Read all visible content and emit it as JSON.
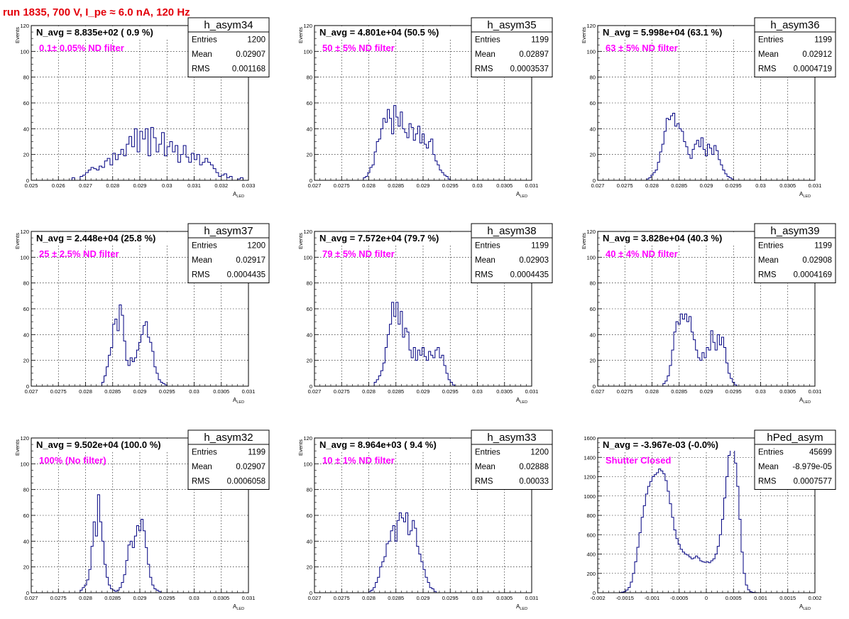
{
  "header": {
    "title": "run 1835,   700 V, I_pe ≈ 6.0 nA, 120 Hz"
  },
  "colors": {
    "title": "#e3000b",
    "histogram": "#000080",
    "annotation": "#ff00ff",
    "grid": "#000000"
  },
  "chart_data": [
    {
      "type": "histogram",
      "name": "h_asym34",
      "nav_label": "N_avg = 8.835e+02 ( 0.9 %)",
      "filter_label": "0.1± 0.05% ND filter",
      "stats": {
        "entries": "1200",
        "mean": "0.02907",
        "rms": "0.001168"
      },
      "stats_labels": {
        "entries": "Entries",
        "mean": "Mean",
        "rms": "RMS"
      },
      "ylabel": "Events",
      "xlabel": "A",
      "xlabel_sub": "LED",
      "xlim": [
        0.025,
        0.033
      ],
      "ylim": [
        0,
        120
      ],
      "xticks": [
        "0.025",
        "0.026",
        "0.027",
        "0.028",
        "0.029",
        "0.03",
        "0.031",
        "0.032",
        "0.033"
      ],
      "yticks": [
        "0",
        "20",
        "40",
        "60",
        "80",
        "100",
        "120"
      ],
      "bin_width": 0.0001,
      "bin_start": 0.0265,
      "values": [
        2,
        0,
        0,
        3,
        4,
        6,
        8,
        10,
        9,
        8,
        11,
        10,
        15,
        17,
        12,
        21,
        16,
        20,
        24,
        19,
        28,
        34,
        26,
        40,
        22,
        38,
        32,
        40,
        19,
        41,
        33,
        22,
        28,
        37,
        19,
        26,
        30,
        22,
        27,
        14,
        20,
        27,
        18,
        14,
        21,
        16,
        20,
        12,
        14,
        17,
        14,
        12,
        9,
        6,
        3,
        4,
        5,
        2,
        3,
        0,
        0,
        1,
        2
      ]
    },
    {
      "type": "histogram",
      "name": "h_asym35",
      "nav_label": "N_avg = 4.801e+04 (50.5 %)",
      "filter_label": "50 ± 5% ND filter",
      "stats": {
        "entries": "1199",
        "mean": "0.02897",
        "rms": "0.0003537"
      },
      "stats_labels": {
        "entries": "Entries",
        "mean": "Mean",
        "rms": "RMS"
      },
      "ylabel": "Events",
      "xlabel": "A",
      "xlabel_sub": "LED",
      "xlim": [
        0.027,
        0.031
      ],
      "ylim": [
        0,
        120
      ],
      "xticks": [
        "0.027",
        "0.0275",
        "0.028",
        "0.0285",
        "0.029",
        "0.0295",
        "0.03",
        "0.0305",
        "0.031"
      ],
      "yticks": [
        "0",
        "20",
        "40",
        "60",
        "80",
        "100",
        "120"
      ],
      "bin_width": 4e-05,
      "bin_start": 0.0279,
      "values": [
        2,
        3,
        6,
        10,
        12,
        22,
        30,
        32,
        40,
        48,
        45,
        55,
        48,
        36,
        58,
        49,
        42,
        53,
        40,
        37,
        33,
        44,
        41,
        31,
        36,
        42,
        29,
        36,
        28,
        25,
        30,
        32,
        20,
        15,
        12,
        8,
        6,
        4,
        3,
        1,
        0
      ]
    },
    {
      "type": "histogram",
      "name": "h_asym36",
      "nav_label": "N_avg = 5.998e+04 (63.1 %)",
      "filter_label": "63 ± 5% ND filter",
      "stats": {
        "entries": "1199",
        "mean": "0.02912",
        "rms": "0.0004719"
      },
      "stats_labels": {
        "entries": "Entries",
        "mean": "Mean",
        "rms": "RMS"
      },
      "ylabel": "Events",
      "xlabel": "A",
      "xlabel_sub": "LED",
      "xlim": [
        0.027,
        0.031
      ],
      "ylim": [
        0,
        120
      ],
      "xticks": [
        "0.027",
        "0.0275",
        "0.028",
        "0.0285",
        "0.029",
        "0.0295",
        "0.03",
        "0.0305",
        "0.031"
      ],
      "yticks": [
        "0",
        "20",
        "40",
        "60",
        "80",
        "100",
        "120"
      ],
      "bin_width": 4e-05,
      "bin_start": 0.0279,
      "values": [
        1,
        2,
        4,
        6,
        8,
        14,
        22,
        28,
        38,
        48,
        47,
        50,
        52,
        42,
        44,
        40,
        38,
        30,
        26,
        20,
        17,
        24,
        28,
        31,
        26,
        33,
        24,
        19,
        28,
        25,
        20,
        27,
        23,
        16,
        12,
        8,
        5,
        3,
        2,
        1
      ]
    },
    {
      "type": "histogram",
      "name": "h_asym37",
      "nav_label": "N_avg = 2.448e+04 (25.8 %)",
      "filter_label": "25 ± 2.5% ND filter",
      "stats": {
        "entries": "1200",
        "mean": "0.02917",
        "rms": "0.0004435"
      },
      "stats_labels": {
        "entries": "Entries",
        "mean": "Mean",
        "rms": "RMS"
      },
      "ylabel": "Events",
      "xlabel": "A",
      "xlabel_sub": "LED",
      "xlim": [
        0.027,
        0.031
      ],
      "ylim": [
        0,
        120
      ],
      "xticks": [
        "0.027",
        "0.0275",
        "0.028",
        "0.0285",
        "0.029",
        "0.0295",
        "0.03",
        "0.0305",
        "0.031"
      ],
      "yticks": [
        "0",
        "20",
        "40",
        "60",
        "80",
        "100",
        "120"
      ],
      "bin_width": 4e-05,
      "bin_start": 0.0283,
      "values": [
        3,
        8,
        15,
        24,
        30,
        48,
        52,
        43,
        63,
        55,
        35,
        20,
        16,
        22,
        19,
        22,
        28,
        34,
        40,
        47,
        50,
        38,
        34,
        27,
        15,
        10,
        5,
        3,
        2,
        1
      ]
    },
    {
      "type": "histogram",
      "name": "h_asym38",
      "nav_label": "N_avg = 7.572e+04 (79.7 %)",
      "filter_label": "79 ± 5% ND filter",
      "stats": {
        "entries": "1199",
        "mean": "0.02903",
        "rms": "0.0004435"
      },
      "stats_labels": {
        "entries": "Entries",
        "mean": "Mean",
        "rms": "RMS"
      },
      "ylabel": "Events",
      "xlabel": "A",
      "xlabel_sub": "LED",
      "xlim": [
        0.027,
        0.031
      ],
      "ylim": [
        0,
        120
      ],
      "xticks": [
        "0.027",
        "0.0275",
        "0.028",
        "0.0285",
        "0.029",
        "0.0295",
        "0.03",
        "0.0305",
        "0.031"
      ],
      "yticks": [
        "0",
        "20",
        "40",
        "60",
        "80",
        "100",
        "120"
      ],
      "bin_width": 4e-05,
      "bin_start": 0.0281,
      "values": [
        3,
        5,
        8,
        12,
        18,
        30,
        40,
        48,
        65,
        54,
        65,
        48,
        58,
        38,
        45,
        42,
        28,
        22,
        30,
        20,
        28,
        24,
        30,
        23,
        20,
        27,
        24,
        22,
        28,
        30,
        22,
        24,
        16,
        10,
        5,
        3,
        1
      ]
    },
    {
      "type": "histogram",
      "name": "h_asym39",
      "nav_label": "N_avg = 3.828e+04 (40.3 %)",
      "filter_label": "40 ± 4% ND filter",
      "stats": {
        "entries": "1199",
        "mean": "0.02908",
        "rms": "0.0004169"
      },
      "stats_labels": {
        "entries": "Entries",
        "mean": "Mean",
        "rms": "RMS"
      },
      "ylabel": "Events",
      "xlabel": "A",
      "xlabel_sub": "LED",
      "xlim": [
        0.027,
        0.031
      ],
      "ylim": [
        0,
        120
      ],
      "xticks": [
        "0.027",
        "0.0275",
        "0.028",
        "0.0285",
        "0.029",
        "0.0295",
        "0.03",
        "0.0305",
        "0.031"
      ],
      "yticks": [
        "0",
        "20",
        "40",
        "60",
        "80",
        "100",
        "120"
      ],
      "bin_width": 4e-05,
      "bin_start": 0.0282,
      "values": [
        2,
        4,
        8,
        16,
        28,
        42,
        50,
        48,
        56,
        52,
        56,
        50,
        54,
        42,
        36,
        28,
        22,
        20,
        26,
        22,
        30,
        28,
        43,
        34,
        28,
        40,
        32,
        38,
        30,
        18,
        10,
        6,
        3,
        1
      ]
    },
    {
      "type": "histogram",
      "name": "h_asym32",
      "nav_label": "N_avg = 9.502e+04 (100.0 %)",
      "filter_label": "100% (No filter)",
      "stats": {
        "entries": "1199",
        "mean": "0.02907",
        "rms": "0.0006058"
      },
      "stats_labels": {
        "entries": "Entries",
        "mean": "Mean",
        "rms": "RMS"
      },
      "ylabel": "Events",
      "xlabel": "A",
      "xlabel_sub": "LED",
      "xlim": [
        0.027,
        0.031
      ],
      "ylim": [
        0,
        120
      ],
      "xticks": [
        "0.027",
        "0.0275",
        "0.028",
        "0.0285",
        "0.029",
        "0.0295",
        "0.03",
        "0.0305",
        "0.031"
      ],
      "yticks": [
        "0",
        "20",
        "40",
        "60",
        "80",
        "100",
        "120"
      ],
      "bin_width": 4e-05,
      "bin_start": 0.0279,
      "values": [
        2,
        4,
        6,
        10,
        18,
        36,
        55,
        44,
        76,
        55,
        40,
        22,
        12,
        6,
        3,
        2,
        1,
        2,
        4,
        8,
        14,
        25,
        37,
        40,
        35,
        44,
        52,
        48,
        57,
        48,
        35,
        22,
        12,
        6,
        3,
        2,
        1
      ]
    },
    {
      "type": "histogram",
      "name": "h_asym33",
      "nav_label": "N_avg = 8.964e+03 ( 9.4 %)",
      "filter_label": "10 ± 1% ND filter",
      "stats": {
        "entries": "1200",
        "mean": "0.02888",
        "rms": "0.00033"
      },
      "stats_labels": {
        "entries": "Entries",
        "mean": "Mean",
        "rms": "RMS"
      },
      "ylabel": "Events",
      "xlabel": "A",
      "xlabel_sub": "LED",
      "xlim": [
        0.027,
        0.031
      ],
      "ylim": [
        0,
        120
      ],
      "xticks": [
        "0.027",
        "0.0275",
        "0.028",
        "0.0285",
        "0.029",
        "0.0295",
        "0.03",
        "0.0305",
        "0.031"
      ],
      "yticks": [
        "0",
        "20",
        "40",
        "60",
        "80",
        "100",
        "120"
      ],
      "bin_width": 4e-05,
      "bin_start": 0.028,
      "values": [
        1,
        2,
        4,
        8,
        12,
        20,
        24,
        28,
        38,
        40,
        48,
        52,
        40,
        56,
        62,
        58,
        55,
        62,
        45,
        48,
        56,
        50,
        36,
        30,
        24,
        18,
        12,
        8,
        4,
        3,
        1
      ]
    },
    {
      "type": "histogram",
      "name": "hPed_asym",
      "nav_label": "N_avg = -3.967e-03 (-0.0%)",
      "filter_label": "Shutter Closed",
      "stats": {
        "entries": "45699",
        "mean": "-8.979e-05",
        "rms": "0.0007577"
      },
      "stats_labels": {
        "entries": "Entries",
        "mean": "Mean",
        "rms": "RMS"
      },
      "ylabel": "",
      "xlabel": "A",
      "xlabel_sub": "LED",
      "xlim": [
        -0.002,
        0.002
      ],
      "ylim": [
        0,
        1600
      ],
      "xticks": [
        "-0.002",
        "-0.0015",
        "-0.001",
        "-0.0005",
        "0",
        "0.0005",
        "0.001",
        "0.0015",
        "0.002"
      ],
      "yticks": [
        "0",
        "200",
        "400",
        "600",
        "800",
        "1000",
        "1200",
        "1400",
        "1600"
      ],
      "bin_width": 4e-05,
      "bin_start": -0.0016,
      "values": [
        3,
        6,
        12,
        28,
        55,
        110,
        200,
        320,
        470,
        620,
        780,
        900,
        1020,
        1100,
        1150,
        1200,
        1220,
        1240,
        1280,
        1260,
        1230,
        1160,
        1050,
        920,
        780,
        650,
        560,
        500,
        450,
        420,
        400,
        390,
        370,
        350,
        360,
        380,
        360,
        330,
        320,
        315,
        320,
        310,
        330,
        350,
        400,
        480,
        600,
        760,
        980,
        1200,
        1420,
        1560,
        1500,
        1340,
        1100,
        760,
        420,
        200,
        80,
        30,
        10,
        4,
        2,
        1
      ]
    }
  ]
}
